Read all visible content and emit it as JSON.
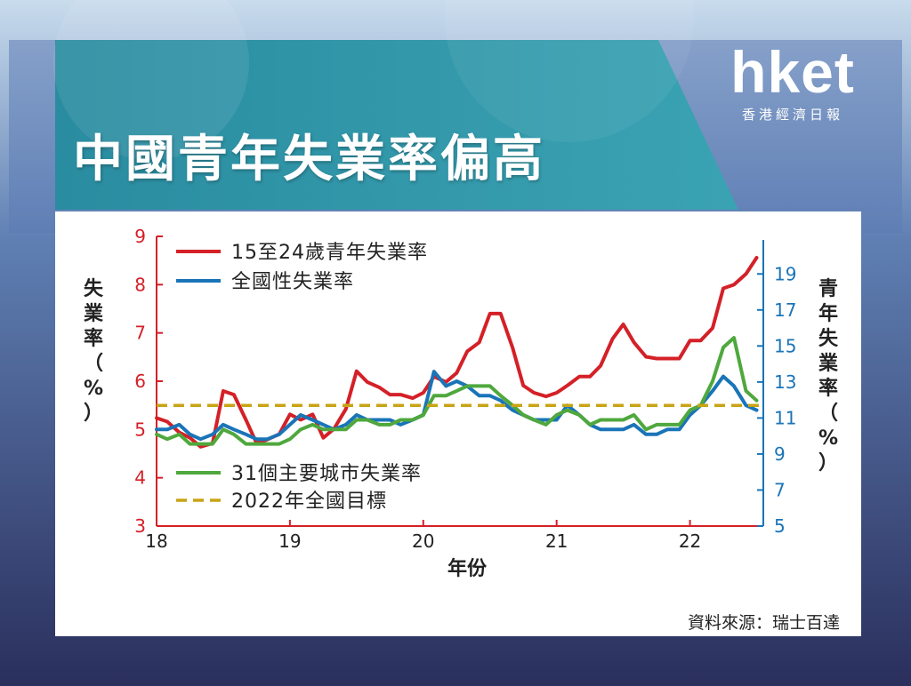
{
  "logo": {
    "main": "hket",
    "sub": "香港經濟日報"
  },
  "title": "中國青年失業率偏高",
  "source": "資料來源：瑞士百達",
  "chart_data": {
    "type": "line",
    "xlabel": "年份",
    "ylabel_left": [
      "失",
      "業",
      "率",
      "（",
      "%",
      "）"
    ],
    "ylabel_right": [
      "青",
      "年",
      "失",
      "業",
      "率",
      "（",
      "%",
      "）"
    ],
    "x_ticks": [
      "18",
      "19",
      "20",
      "21",
      "22"
    ],
    "x_range": [
      2018,
      2022.55
    ],
    "ylim_left": [
      3,
      9
    ],
    "yticks_left": [
      3,
      4,
      5,
      6,
      7,
      8,
      9
    ],
    "ylim_right": [
      5,
      20
    ],
    "yticks_right": [
      5,
      7,
      9,
      11,
      13,
      15,
      17,
      19
    ],
    "legend": [
      {
        "label": "15至24歲青年失業率",
        "series": "youth"
      },
      {
        "label": "全國性失業率",
        "series": "national"
      },
      {
        "label": "31個主要城市失業率",
        "series": "cities"
      },
      {
        "label": "2022年全國目標",
        "series": "target"
      }
    ],
    "series": [
      {
        "name": "15至24歲青年失業率",
        "key": "youth",
        "axis": "right",
        "color": "#d42027",
        "x": [
          2018.0,
          2018.08,
          2018.17,
          2018.25,
          2018.33,
          2018.42,
          2018.5,
          2018.58,
          2018.67,
          2018.75,
          2018.83,
          2018.92,
          2019.0,
          2019.08,
          2019.17,
          2019.25,
          2019.33,
          2019.42,
          2019.5,
          2019.58,
          2019.67,
          2019.75,
          2019.83,
          2019.92,
          2020.0,
          2020.08,
          2020.17,
          2020.25,
          2020.33,
          2020.42,
          2020.5,
          2020.58,
          2020.67,
          2020.75,
          2020.83,
          2020.92,
          2021.0,
          2021.08,
          2021.17,
          2021.25,
          2021.33,
          2021.42,
          2021.5,
          2021.58,
          2021.67,
          2021.75,
          2021.83,
          2021.92,
          2022.0,
          2022.08,
          2022.17,
          2022.25,
          2022.33,
          2022.42,
          2022.5
        ],
        "values": [
          11.0,
          10.8,
          10.2,
          9.9,
          9.4,
          9.6,
          12.5,
          12.3,
          10.9,
          9.6,
          9.8,
          10.1,
          11.2,
          10.9,
          11.2,
          9.9,
          10.4,
          11.5,
          13.6,
          13.0,
          12.7,
          12.3,
          12.3,
          12.1,
          12.4,
          13.3,
          13.0,
          13.5,
          14.7,
          15.2,
          16.8,
          16.8,
          14.9,
          12.8,
          12.4,
          12.2,
          12.4,
          12.8,
          13.3,
          13.3,
          13.9,
          15.4,
          16.2,
          15.2,
          14.4,
          14.3,
          14.3,
          14.3,
          15.3,
          15.3,
          16.0,
          18.2,
          18.4,
          19.0,
          19.9
        ]
      },
      {
        "name": "全國性失業率",
        "key": "national",
        "axis": "left",
        "color": "#1a74b8",
        "x": [
          2018.0,
          2018.08,
          2018.17,
          2018.25,
          2018.33,
          2018.42,
          2018.5,
          2018.58,
          2018.67,
          2018.75,
          2018.83,
          2018.92,
          2019.0,
          2019.08,
          2019.17,
          2019.25,
          2019.33,
          2019.42,
          2019.5,
          2019.58,
          2019.67,
          2019.75,
          2019.83,
          2019.92,
          2020.0,
          2020.08,
          2020.17,
          2020.25,
          2020.33,
          2020.42,
          2020.5,
          2020.58,
          2020.67,
          2020.75,
          2020.83,
          2020.92,
          2021.0,
          2021.08,
          2021.17,
          2021.25,
          2021.33,
          2021.42,
          2021.5,
          2021.58,
          2021.67,
          2021.75,
          2021.83,
          2021.92,
          2022.0,
          2022.08,
          2022.17,
          2022.25,
          2022.33,
          2022.42,
          2022.5
        ],
        "values": [
          5.0,
          5.0,
          5.1,
          4.9,
          4.8,
          4.9,
          5.1,
          5.0,
          4.9,
          4.8,
          4.8,
          4.9,
          5.1,
          5.3,
          5.2,
          5.1,
          5.0,
          5.1,
          5.3,
          5.2,
          5.2,
          5.2,
          5.1,
          5.2,
          5.3,
          6.2,
          5.9,
          6.0,
          5.9,
          5.7,
          5.7,
          5.6,
          5.4,
          5.3,
          5.2,
          5.2,
          5.2,
          5.5,
          5.3,
          5.1,
          5.0,
          5.0,
          5.0,
          5.1,
          4.9,
          4.9,
          5.0,
          5.0,
          5.3,
          5.5,
          5.8,
          6.1,
          5.9,
          5.5,
          5.4
        ]
      },
      {
        "name": "31個主要城市失業率",
        "key": "cities",
        "axis": "left",
        "color": "#4fa83d",
        "x": [
          2018.0,
          2018.08,
          2018.17,
          2018.25,
          2018.33,
          2018.42,
          2018.5,
          2018.58,
          2018.67,
          2018.75,
          2018.83,
          2018.92,
          2019.0,
          2019.08,
          2019.17,
          2019.25,
          2019.33,
          2019.42,
          2019.5,
          2019.58,
          2019.67,
          2019.75,
          2019.83,
          2019.92,
          2020.0,
          2020.08,
          2020.17,
          2020.25,
          2020.33,
          2020.42,
          2020.5,
          2020.58,
          2020.67,
          2020.75,
          2020.83,
          2020.92,
          2021.0,
          2021.08,
          2021.17,
          2021.25,
          2021.33,
          2021.42,
          2021.5,
          2021.58,
          2021.67,
          2021.75,
          2021.83,
          2021.92,
          2022.0,
          2022.08,
          2022.17,
          2022.25,
          2022.33,
          2022.42,
          2022.5
        ],
        "values": [
          4.9,
          4.8,
          4.9,
          4.7,
          4.7,
          4.7,
          5.0,
          4.9,
          4.7,
          4.7,
          4.7,
          4.7,
          4.8,
          5.0,
          5.1,
          5.0,
          5.0,
          5.0,
          5.2,
          5.2,
          5.1,
          5.1,
          5.2,
          5.2,
          5.3,
          5.7,
          5.7,
          5.8,
          5.9,
          5.9,
          5.9,
          5.7,
          5.5,
          5.3,
          5.2,
          5.1,
          5.3,
          5.4,
          5.3,
          5.1,
          5.2,
          5.2,
          5.2,
          5.3,
          5.0,
          5.1,
          5.1,
          5.1,
          5.4,
          5.5,
          6.0,
          6.7,
          6.9,
          5.8,
          5.6
        ]
      },
      {
        "name": "2022年全國目標",
        "key": "target",
        "axis": "left",
        "color": "#c8a414",
        "dashed": true,
        "x": [
          2018.0,
          2022.55
        ],
        "values": [
          5.5,
          5.5
        ]
      }
    ]
  }
}
